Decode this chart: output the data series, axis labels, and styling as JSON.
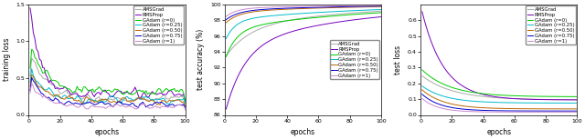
{
  "legend_labels": [
    "AMSGrad",
    "RMSProp",
    "GAdam (r=0)",
    "GAdam (r=0.25)",
    "GAdam (r=0.50)",
    "GAdam (r=0.75)",
    "GAdam (r=1)"
  ],
  "colors": [
    "#aaaaaa",
    "#7700bb",
    "#00cc00",
    "#00bbcc",
    "#bb6600",
    "#0000cc",
    "#cc88cc"
  ],
  "plot1": {
    "xlabel": "epochs",
    "ylabel": "training loss",
    "ylim": [
      0,
      1.5
    ],
    "xlim": [
      0,
      100
    ],
    "yticks": [
      0,
      0.5,
      1.0,
      1.5
    ],
    "xticks": [
      0,
      20,
      40,
      60,
      80,
      100
    ]
  },
  "plot2": {
    "xlabel": "epochs",
    "ylabel": "test accuracy (%)",
    "ylim": [
      86,
      100
    ],
    "xlim": [
      0,
      100
    ],
    "yticks": [
      86,
      88,
      90,
      92,
      94,
      96,
      98,
      100
    ],
    "xticks": [
      0,
      20,
      40,
      60,
      80,
      100
    ]
  },
  "plot3": {
    "xlabel": "epochs",
    "ylabel": "test loss",
    "ylim": [
      0,
      0.7
    ],
    "xlim": [
      0,
      100
    ],
    "yticks": [
      0,
      0.1,
      0.2,
      0.3,
      0.4,
      0.5,
      0.6
    ],
    "xticks": [
      0,
      20,
      40,
      60,
      80,
      100
    ]
  }
}
